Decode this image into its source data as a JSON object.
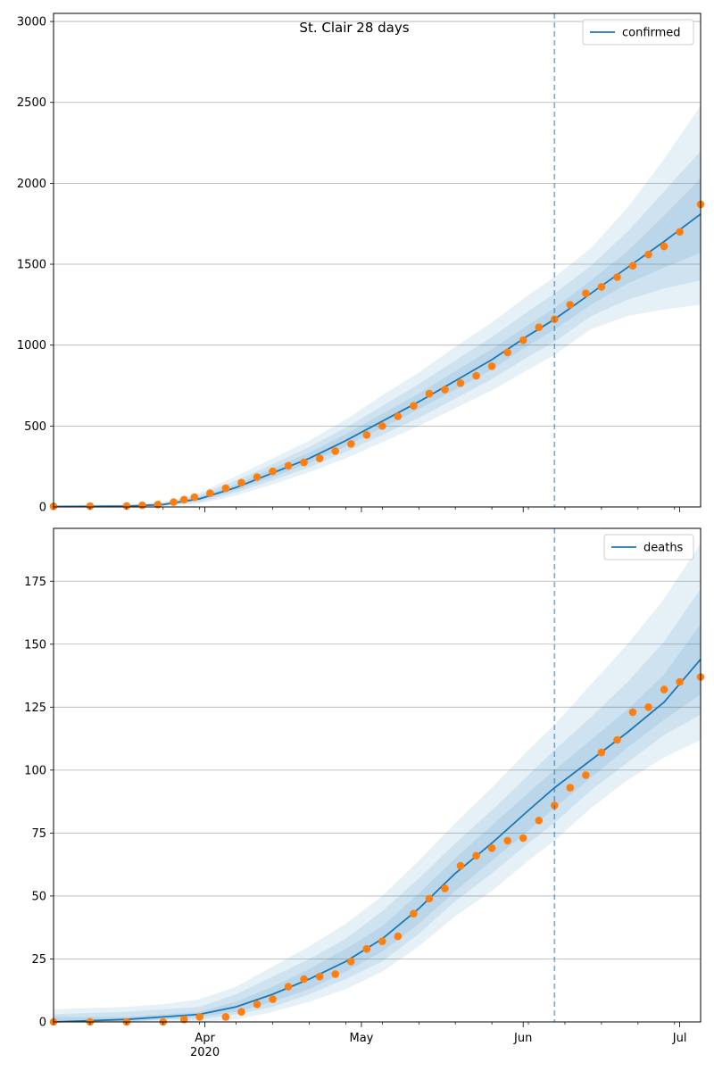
{
  "figure": {
    "title": "St. Clair 28 days"
  },
  "colors": {
    "model": "#1f77b4",
    "observed": "#ff7f0e",
    "band": "#1f77b4",
    "grid": "#b0b0b0",
    "cutoff": "#1f77b4"
  },
  "chart_data": [
    {
      "type": "line",
      "name": "confirmed-panel",
      "legend": "confirmed",
      "legend_placement": "top-right",
      "title": "St. Clair 28 days",
      "ylim": [
        0,
        3050
      ],
      "yticks": [
        0,
        500,
        1000,
        1500,
        2000,
        2500,
        3000
      ],
      "xlim": [
        "2020-03-03",
        "2020-07-05"
      ],
      "cutoff_date": "2020-06-07",
      "grid": "y",
      "observed": {
        "dates": [
          "2020-03-03",
          "2020-03-10",
          "2020-03-17",
          "2020-03-20",
          "2020-03-23",
          "2020-03-26",
          "2020-03-28",
          "2020-03-30",
          "2020-04-02",
          "2020-04-05",
          "2020-04-08",
          "2020-04-11",
          "2020-04-14",
          "2020-04-17",
          "2020-04-20",
          "2020-04-23",
          "2020-04-26",
          "2020-04-29",
          "2020-05-02",
          "2020-05-05",
          "2020-05-08",
          "2020-05-11",
          "2020-05-14",
          "2020-05-17",
          "2020-05-20",
          "2020-05-23",
          "2020-05-26",
          "2020-05-29",
          "2020-06-01",
          "2020-06-04",
          "2020-06-07",
          "2020-06-10",
          "2020-06-13",
          "2020-06-16",
          "2020-06-19",
          "2020-06-22",
          "2020-06-25",
          "2020-06-28",
          "2020-07-01",
          "2020-07-05"
        ],
        "values": [
          4,
          5,
          6,
          10,
          15,
          30,
          45,
          60,
          85,
          115,
          150,
          185,
          220,
          255,
          275,
          300,
          345,
          390,
          445,
          500,
          560,
          625,
          700,
          725,
          765,
          810,
          870,
          955,
          1030,
          1110,
          1160,
          1250,
          1320,
          1360,
          1420,
          1490,
          1560,
          1610,
          1700,
          1870
        ]
      },
      "model": {
        "dates": [
          "2020-03-03",
          "2020-03-17",
          "2020-03-24",
          "2020-03-31",
          "2020-04-07",
          "2020-04-14",
          "2020-04-21",
          "2020-04-28",
          "2020-05-05",
          "2020-05-12",
          "2020-05-19",
          "2020-05-26",
          "2020-06-02",
          "2020-06-07",
          "2020-06-14",
          "2020-06-21",
          "2020-06-28",
          "2020-07-05"
        ],
        "values": [
          3,
          5,
          15,
          50,
          120,
          210,
          300,
          410,
          530,
          650,
          780,
          910,
          1060,
          1160,
          1320,
          1480,
          1640,
          1810
        ]
      },
      "bands": [
        {
          "lower": [
            0,
            0,
            5,
            20,
            70,
            140,
            215,
            300,
            400,
            500,
            610,
            720,
            850,
            940,
            1100,
            1180,
            1220,
            1250
          ],
          "upper": [
            10,
            15,
            30,
            90,
            190,
            300,
            410,
            540,
            690,
            830,
            990,
            1140,
            1310,
            1420,
            1600,
            1850,
            2150,
            2480
          ]
        },
        {
          "lower": [
            1,
            2,
            8,
            30,
            90,
            165,
            245,
            340,
            445,
            550,
            670,
            790,
            930,
            1020,
            1180,
            1280,
            1350,
            1400
          ],
          "upper": [
            7,
            10,
            24,
            75,
            165,
            265,
            370,
            490,
            625,
            760,
            905,
            1050,
            1210,
            1320,
            1490,
            1700,
            1950,
            2200
          ]
        },
        {
          "lower": [
            2,
            3,
            11,
            40,
            105,
            185,
            270,
            375,
            490,
            605,
            725,
            850,
            1000,
            1095,
            1250,
            1380,
            1480,
            1570
          ],
          "upper": [
            5,
            7,
            19,
            62,
            140,
            240,
            335,
            450,
            575,
            700,
            840,
            975,
            1125,
            1230,
            1400,
            1580,
            1800,
            2030
          ]
        }
      ]
    },
    {
      "type": "line",
      "name": "deaths-panel",
      "legend": "deaths",
      "legend_placement": "top-right",
      "ylim": [
        0,
        196
      ],
      "yticks": [
        0,
        25,
        50,
        75,
        100,
        125,
        150,
        175
      ],
      "xlim": [
        "2020-03-03",
        "2020-07-05"
      ],
      "cutoff_date": "2020-06-07",
      "grid": "y",
      "xticks": [
        {
          "date": "2020-04-01",
          "label": "Apr",
          "sublabel": "2020"
        },
        {
          "date": "2020-05-01",
          "label": "May"
        },
        {
          "date": "2020-06-01",
          "label": "Jun"
        },
        {
          "date": "2020-07-01",
          "label": "Jul"
        }
      ],
      "observed": {
        "dates": [
          "2020-03-03",
          "2020-03-10",
          "2020-03-17",
          "2020-03-24",
          "2020-03-28",
          "2020-03-31",
          "2020-04-05",
          "2020-04-08",
          "2020-04-11",
          "2020-04-14",
          "2020-04-17",
          "2020-04-20",
          "2020-04-23",
          "2020-04-26",
          "2020-04-29",
          "2020-05-02",
          "2020-05-05",
          "2020-05-08",
          "2020-05-11",
          "2020-05-14",
          "2020-05-17",
          "2020-05-20",
          "2020-05-23",
          "2020-05-26",
          "2020-05-29",
          "2020-06-01",
          "2020-06-04",
          "2020-06-07",
          "2020-06-10",
          "2020-06-13",
          "2020-06-16",
          "2020-06-19",
          "2020-06-22",
          "2020-06-25",
          "2020-06-28",
          "2020-07-01",
          "2020-07-05"
        ],
        "values": [
          0,
          0,
          0,
          0,
          1,
          2,
          2,
          4,
          7,
          9,
          14,
          17,
          18,
          19,
          24,
          29,
          32,
          34,
          43,
          49,
          53,
          62,
          66,
          69,
          72,
          73,
          80,
          86,
          93,
          98,
          107,
          112,
          123,
          125,
          132,
          135,
          137
        ]
      },
      "model": {
        "dates": [
          "2020-03-03",
          "2020-03-17",
          "2020-03-24",
          "2020-03-31",
          "2020-04-07",
          "2020-04-14",
          "2020-04-21",
          "2020-04-28",
          "2020-05-05",
          "2020-05-12",
          "2020-05-19",
          "2020-05-26",
          "2020-06-02",
          "2020-06-07",
          "2020-06-14",
          "2020-06-21",
          "2020-06-28",
          "2020-07-05"
        ],
        "values": [
          0,
          1,
          2,
          3,
          6,
          11,
          17,
          24,
          33,
          45,
          59,
          71,
          84,
          93,
          104,
          115,
          127,
          144
        ]
      },
      "bands": [
        {
          "lower": [
            0,
            0,
            0,
            0,
            1,
            4,
            8,
            13,
            20,
            30,
            42,
            52,
            64,
            72,
            85,
            96,
            105,
            112
          ],
          "upper": [
            5,
            6,
            7,
            9,
            14,
            22,
            30,
            39,
            50,
            64,
            79,
            93,
            108,
            118,
            134,
            150,
            168,
            190
          ]
        },
        {
          "lower": [
            0,
            0,
            1,
            1,
            3,
            6,
            11,
            17,
            24,
            35,
            48,
            59,
            71,
            79,
            92,
            103,
            114,
            122
          ],
          "upper": [
            3,
            4,
            5,
            6,
            11,
            18,
            25,
            33,
            44,
            57,
            71,
            84,
            98,
            108,
            121,
            135,
            151,
            172
          ]
        },
        {
          "lower": [
            0,
            0,
            1,
            2,
            4,
            8,
            13,
            20,
            28,
            39,
            52,
            64,
            76,
            85,
            97,
            109,
            120,
            130
          ],
          "upper": [
            2,
            2,
            3,
            4,
            8,
            14,
            21,
            29,
            38,
            51,
            65,
            78,
            91,
            100,
            112,
            124,
            138,
            158
          ]
        }
      ]
    }
  ]
}
